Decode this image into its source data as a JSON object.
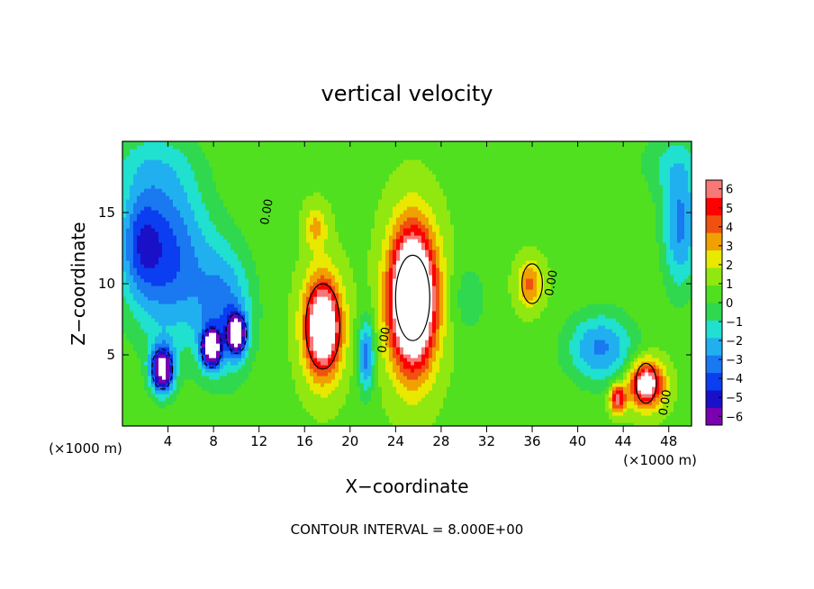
{
  "chart_data": {
    "type": "heatmap",
    "title": "vertical velocity",
    "xlabel": "X−coordinate",
    "ylabel": "Z−coordinate",
    "x_unit_left": "(×1000 m)",
    "x_unit_right": "(×1000 m)",
    "footer": "CONTOUR INTERVAL = 8.000E+00",
    "xlim": [
      0,
      50
    ],
    "ylim": [
      0,
      20
    ],
    "x_ticks": [
      4,
      8,
      12,
      16,
      20,
      24,
      28,
      32,
      36,
      40,
      44,
      48
    ],
    "x_tick_labels": [
      "4",
      "8",
      "12",
      "16",
      "20",
      "24",
      "28",
      "32",
      "36",
      "40",
      "44",
      "48"
    ],
    "y_ticks": [
      5,
      10,
      15
    ],
    "y_tick_labels": [
      "5",
      "10",
      "15"
    ],
    "colorbar": {
      "levels": [
        -6,
        -5,
        -4,
        -3,
        -2,
        -1,
        0,
        1,
        2,
        3,
        4,
        5,
        6
      ],
      "labels": [
        "−6",
        "−5",
        "−4",
        "−3",
        "−2",
        "−1",
        "0",
        "1",
        "2",
        "3",
        "4",
        "5",
        "6"
      ],
      "colors": [
        "#7a00b0",
        "#1a10c8",
        "#0a3ef0",
        "#1a78f0",
        "#20b0f0",
        "#20e0d0",
        "#30d850",
        "#50e020",
        "#90e810",
        "#e8e800",
        "#f0a000",
        "#f05010",
        "#ff0000",
        "#f87878"
      ]
    },
    "contour_labels": [
      "0.00",
      "0.00",
      "0.00",
      "0.00"
    ],
    "features": [
      {
        "type": "updraft",
        "x": 17.6,
        "z": 7.0,
        "peak": 10
      },
      {
        "type": "updraft",
        "x": 25.5,
        "z": 9.0,
        "peak": 14
      },
      {
        "type": "downdraft",
        "x": 3.5,
        "z": 4.0,
        "peak": -9
      },
      {
        "type": "downdraft",
        "x": 7.8,
        "z": 5.5,
        "peak": -9
      },
      {
        "type": "downdraft",
        "x": 10.0,
        "z": 6.5,
        "peak": -8
      },
      {
        "type": "updraft",
        "x": 36.0,
        "z": 10.0,
        "peak": 4
      },
      {
        "type": "updraft",
        "x": 46.0,
        "z": 3.0,
        "peak": 8
      }
    ]
  }
}
